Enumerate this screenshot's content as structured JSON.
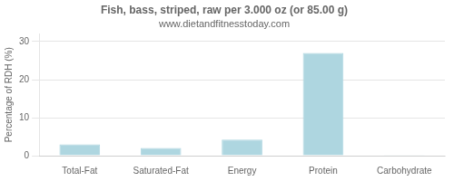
{
  "chart_data": {
    "type": "bar",
    "title": "Fish, bass, striped, raw per 3.000 oz (or 85.00 g)",
    "subtitle": "www.dietandfitnesstoday.com",
    "categories": [
      "Total-Fat",
      "Saturated-Fat",
      "Energy",
      "Protein",
      "Carbohydrate"
    ],
    "values": [
      3.0,
      2.0,
      4.2,
      27.0,
      0.2
    ],
    "color": "#aed6e0",
    "ylabel": "Percentage of RDH (%)",
    "ylim": [
      0,
      32
    ],
    "yticks": [
      0,
      10,
      20,
      30
    ],
    "grid": true
  }
}
